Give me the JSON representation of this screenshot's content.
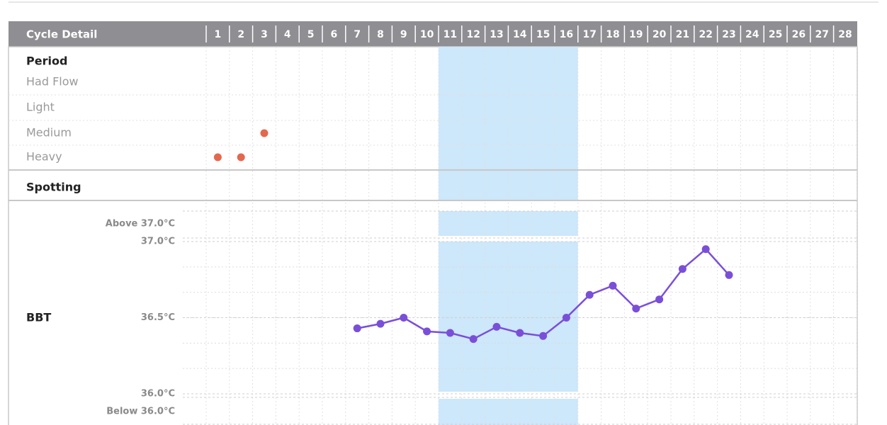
{
  "chart_data": {
    "type": "line",
    "header": "Cycle Detail",
    "x": [
      1,
      2,
      3,
      4,
      5,
      6,
      7,
      8,
      9,
      10,
      11,
      12,
      13,
      14,
      15,
      16,
      17,
      18,
      19,
      20,
      21,
      22,
      23,
      24,
      25,
      26,
      27,
      28
    ],
    "period_label": "Period",
    "flow_levels": [
      "Had Flow",
      "Light",
      "Medium",
      "Heavy"
    ],
    "flow": [
      "Heavy",
      "Heavy",
      "Medium"
    ],
    "flow_color": "#e3684e",
    "spotting_label": "Spotting",
    "fertile_days": [
      11,
      16
    ],
    "fertile_color": "#cde7fb",
    "y_label": "BBT",
    "above_label": "Above 37.0°C",
    "below_label": "Below 36.0°C",
    "ylim": [
      36.0,
      37.0
    ],
    "yticks": [
      {
        "value": 36.0,
        "label": "36.0°C"
      },
      {
        "value": 36.5,
        "label": "36.5°C"
      },
      {
        "value": 37.0,
        "label": "37.0°C"
      }
    ],
    "series": [
      {
        "name": "BBT",
        "color": "#7a4fd8",
        "values": [
          null,
          null,
          null,
          null,
          null,
          null,
          36.43,
          36.46,
          36.5,
          36.41,
          36.4,
          36.36,
          36.44,
          36.4,
          36.38,
          36.5,
          36.65,
          36.71,
          36.56,
          36.62,
          36.82,
          36.95,
          36.78,
          null,
          null,
          null,
          null,
          null
        ]
      }
    ]
  }
}
